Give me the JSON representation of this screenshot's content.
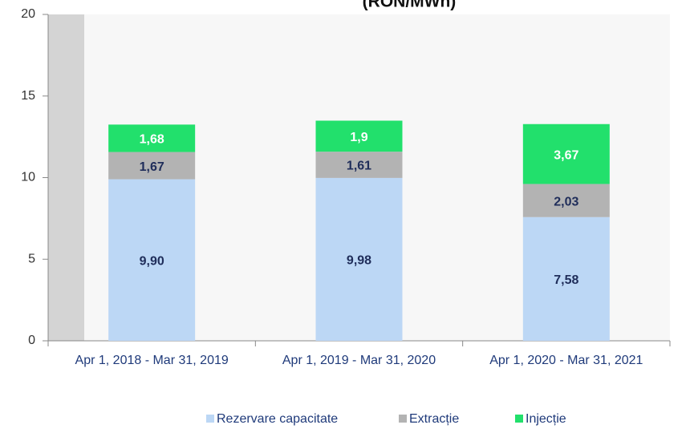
{
  "chart_data": {
    "type": "stacked_bar",
    "title": "(RON/MWh)",
    "categories": [
      "Apr 1, 2018 - Mar 31, 2019",
      "Apr 1, 2019 - Mar 31, 2020",
      "Apr 1, 2020 - Mar 31, 2021"
    ],
    "series": [
      {
        "name": "Rezervare capacitate",
        "color": "#bcd7f5",
        "label_color": "#1f2d5a",
        "values": [
          9.9,
          9.98,
          7.58
        ],
        "value_labels": [
          "9,90",
          "9,98",
          "7,58"
        ]
      },
      {
        "name": "Extracție",
        "color": "#b3b3b3",
        "label_color": "#1f2d5a",
        "values": [
          1.67,
          1.61,
          2.03
        ],
        "value_labels": [
          "1,67",
          "1,61",
          "2,03"
        ]
      },
      {
        "name": "Injecție",
        "color": "#22e06c",
        "label_color": "#ffffff",
        "values": [
          1.68,
          1.9,
          3.67
        ],
        "value_labels": [
          "1,68",
          "1,9",
          "3,67"
        ]
      }
    ],
    "ylim": [
      0,
      20
    ],
    "yticks": [
      0,
      5,
      10,
      15,
      20
    ],
    "legend": "bottom"
  }
}
